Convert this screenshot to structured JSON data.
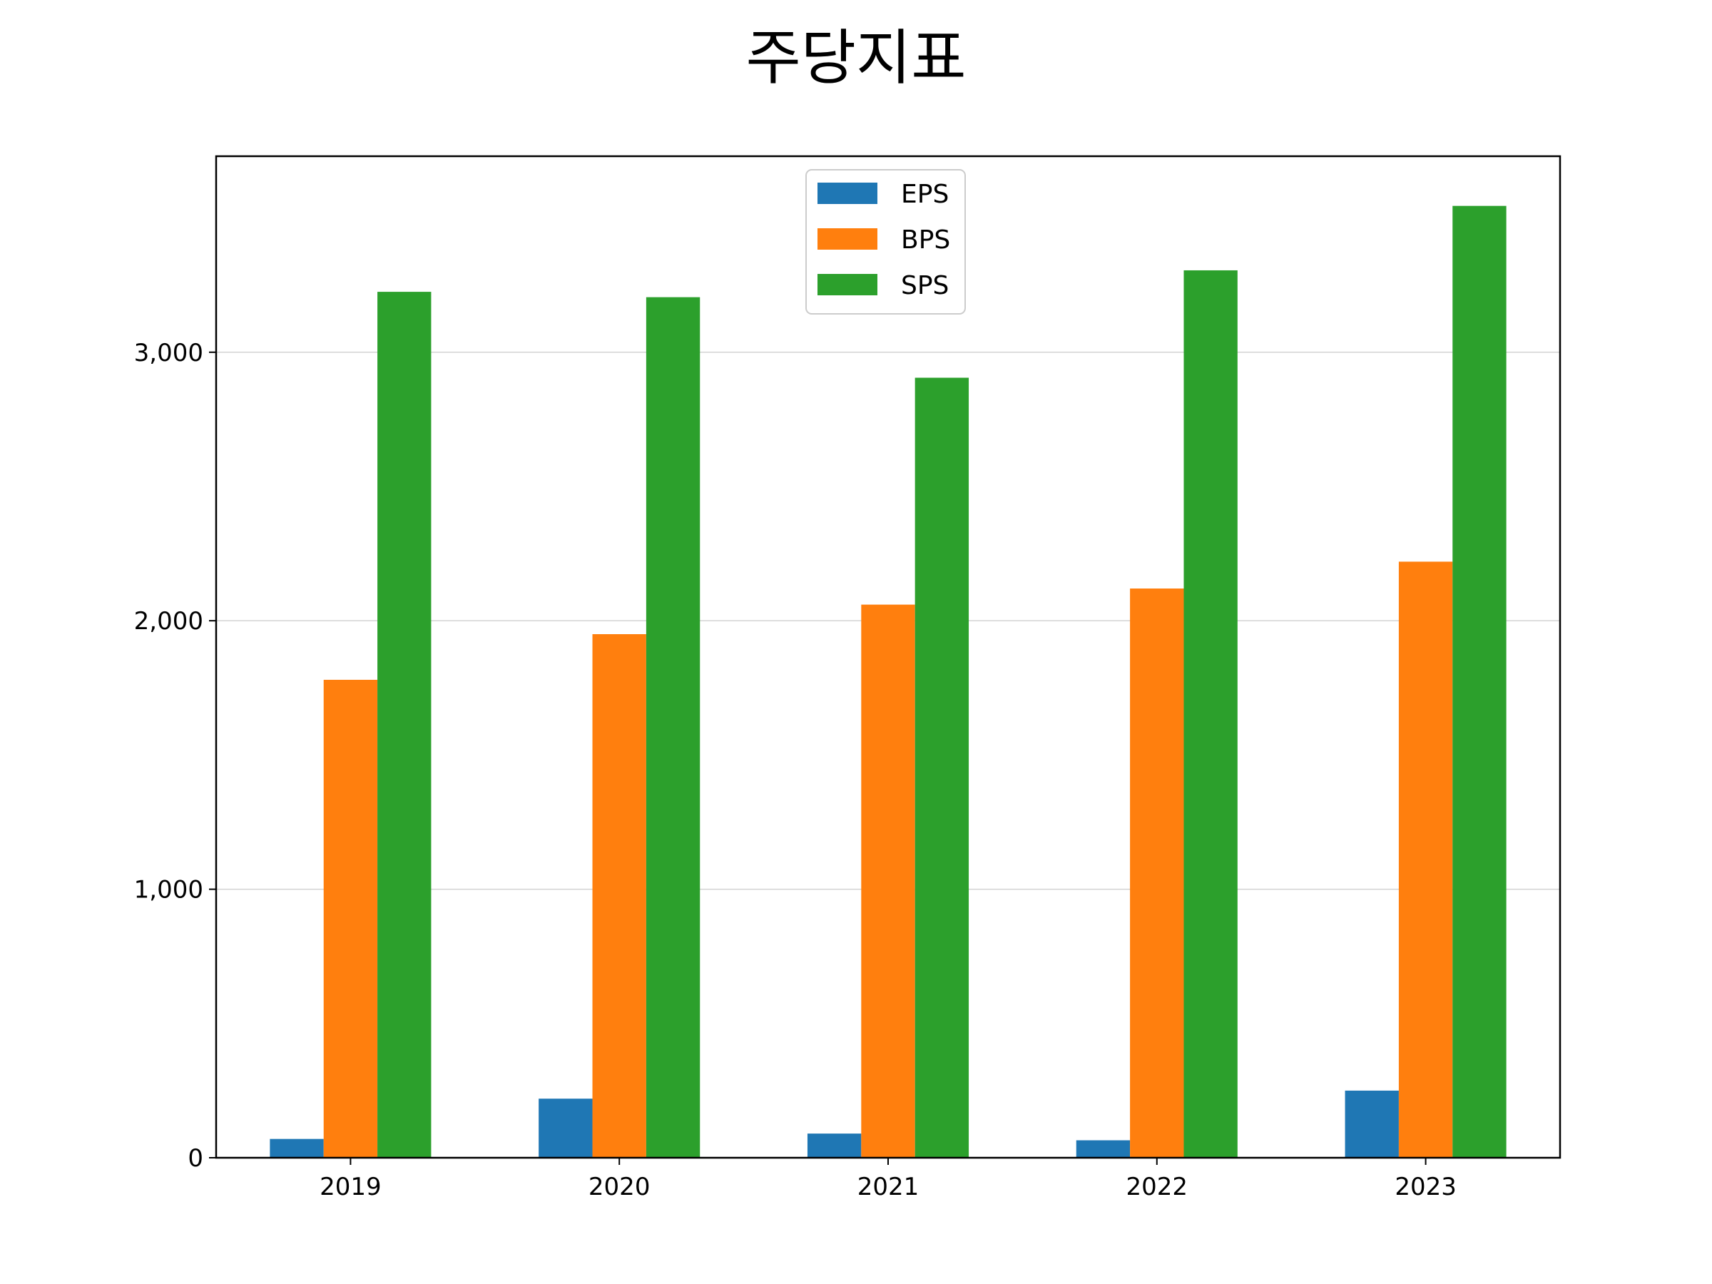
{
  "chart_data": {
    "type": "bar",
    "title": "주당지표",
    "xlabel": "",
    "ylabel": "",
    "categories": [
      "2019",
      "2020",
      "2021",
      "2022",
      "2023"
    ],
    "series": [
      {
        "name": "EPS",
        "color": "#1f77b4",
        "values": [
          70,
          220,
          90,
          65,
          250
        ]
      },
      {
        "name": "BPS",
        "color": "#ff7f0e",
        "values": [
          1780,
          1950,
          2060,
          2120,
          2220
        ]
      },
      {
        "name": "SPS",
        "color": "#2ca02c",
        "values": [
          3225,
          3205,
          2905,
          3305,
          3545
        ]
      }
    ],
    "ylim": [
      0,
      3730
    ],
    "yticks": [
      0,
      1000,
      2000,
      3000
    ],
    "ytick_labels": [
      "0",
      "1,000",
      "2,000",
      "3,000"
    ],
    "grid": "y",
    "legend_position": "top-center"
  }
}
